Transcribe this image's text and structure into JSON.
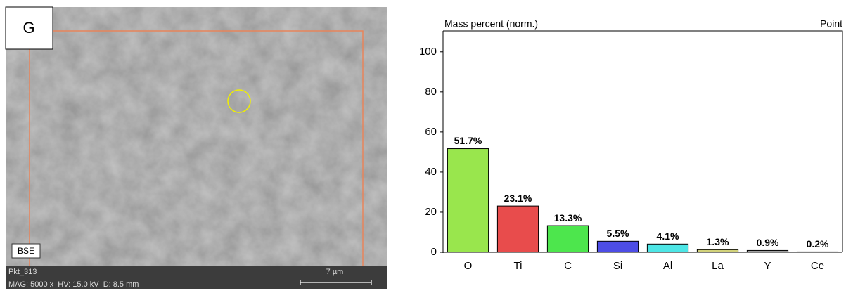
{
  "image": {
    "panel_label": "G",
    "detector": "BSE",
    "point_name": "Pkt_313",
    "info": "MAG: 5000 x  HV: 15.0 kV  D: 8.5 mm",
    "scale_bar": "7 µm"
  },
  "chart_data": {
    "type": "bar",
    "title": "Mass percent (norm.)",
    "subtitle": "Point",
    "categories": [
      "O",
      "Ti",
      "C",
      "Si",
      "Al",
      "La",
      "Y",
      "Ce"
    ],
    "values": [
      51.7,
      23.1,
      13.3,
      5.5,
      4.1,
      1.3,
      0.9,
      0.2
    ],
    "value_labels": [
      "51.7%",
      "23.1%",
      "13.3%",
      "5.5%",
      "4.1%",
      "1.3%",
      "0.9%",
      "0.2%"
    ],
    "colors": [
      "#99e64d",
      "#e84c4c",
      "#4de64d",
      "#4d4de6",
      "#4de6e6",
      "#d2d27a",
      "#a0a0a0",
      "#b07ad2"
    ],
    "ylim": [
      0,
      115
    ],
    "yticks": [
      0,
      20,
      40,
      60,
      80,
      100
    ]
  }
}
